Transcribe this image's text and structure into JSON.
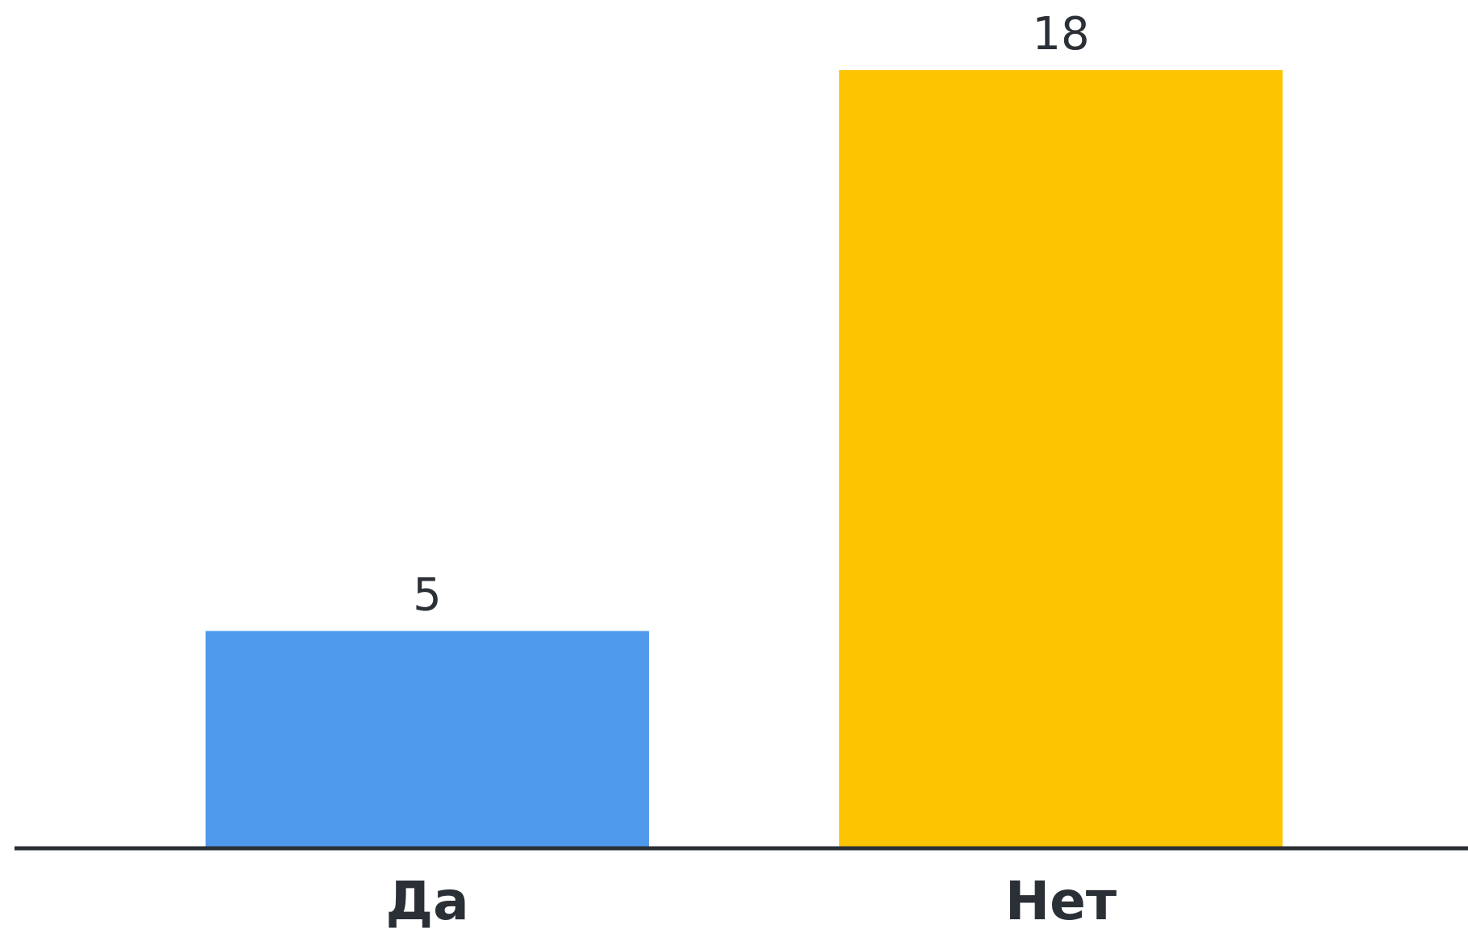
{
  "chart_data": {
    "type": "bar",
    "categories": [
      "Да",
      "Нет"
    ],
    "values": [
      5,
      18
    ],
    "data_labels": [
      "5",
      "18"
    ],
    "title": "",
    "xlabel": "",
    "ylabel": "",
    "ylim": [
      0,
      18
    ],
    "grid": false,
    "legend": "none",
    "bar_colors": [
      "#4f99ec",
      "#fcc400"
    ],
    "axis_color": "#2b2f36",
    "text_color": "#2b2f36"
  }
}
